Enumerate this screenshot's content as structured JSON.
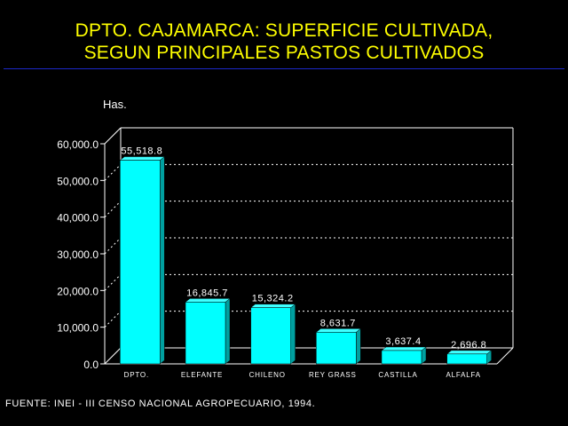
{
  "title": {
    "line1": "DPTO. CAJAMARCA: SUPERFICIE CULTIVADA,",
    "line2": "SEGUN PRINCIPALES PASTOS CULTIVADOS"
  },
  "source": "FUENTE: INEI - III CENSO NACIONAL AGROPECUARIO, 1994.",
  "chart_data": {
    "type": "bar",
    "title": "DPTO. CAJAMARCA: SUPERFICIE CULTIVADA, SEGUN PRINCIPALES PASTOS CULTIVADOS",
    "ylabel": "Has.",
    "xlabel": "",
    "categories": [
      "DPTO.",
      "ELEFANTE",
      "CHILENO",
      "REY GRASS",
      "CASTILLA",
      "ALFALFA"
    ],
    "values": [
      55518.8,
      16845.7,
      15324.2,
      8631.7,
      3637.4,
      2696.8
    ],
    "data_labels": [
      "55,518.8",
      "16,845.7",
      "15,324.2",
      "8,631.7",
      "3,637.4",
      "2,696.8"
    ],
    "ylim": [
      0,
      60000
    ],
    "yticks": [
      0,
      10000,
      20000,
      30000,
      40000,
      50000,
      60000
    ],
    "ytick_labels": [
      "0.0",
      "10,000.0",
      "20,000.0",
      "30,000.0",
      "40,000.0",
      "50,000.0",
      "60,000.0"
    ],
    "grid": true,
    "legend": "none",
    "colors": {
      "bar_front": "#00ffff",
      "bar_side": "#00a0a0",
      "bar_top": "#40ffff",
      "grid": "#ffffff",
      "background": "#000000",
      "title": "#ffff00"
    }
  }
}
